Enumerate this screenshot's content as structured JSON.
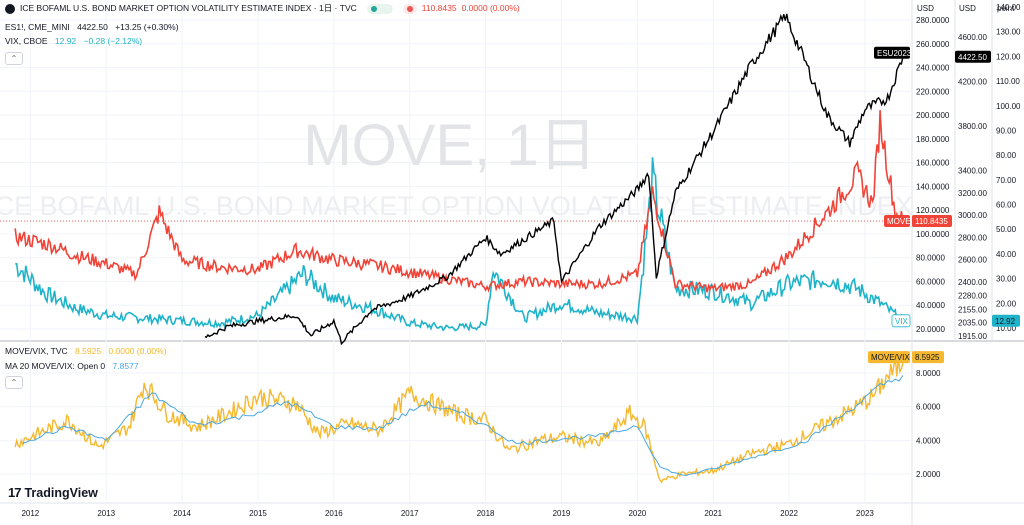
{
  "symbol_title": "ICE BOFAML U.S. BOND MARKET OPTION VOLATILITY ESTIMATE INDEX · 1日 · TVC",
  "header_price": "110.8435",
  "header_change": "0.0000 (0.00%)",
  "es_legend": {
    "symbol": "ES1!, CME_MINI",
    "price": "4422.50",
    "change": "+13.25 (+0.30%)"
  },
  "vix_legend": {
    "symbol": "VIX, CBOE",
    "price": "12.92",
    "change": "−0.28 (−2.12%)"
  },
  "ratio_legend": {
    "symbol": "MOVE/VIX, TVC",
    "price": "8.5925",
    "change": "0.0000 (0.00%)"
  },
  "ma_legend": {
    "name": "MA 20 MOVE/VIX: Open 0",
    "value": "7.8577"
  },
  "collapse_glyph": "⌃",
  "watermark": {
    "main": "MOVE, 1日",
    "sub": "ICE BOFAML U.S. BOND MARKET OPTION VOLATILITY ESTIMATE INDEX"
  },
  "axis_headers": {
    "move": "USD",
    "es": "USD",
    "vix": "point"
  },
  "branding": {
    "mark": "17",
    "name": "TradingView"
  },
  "colors": {
    "move": "#f04438",
    "es": "#000000",
    "vix": "#1fb3c9",
    "ratio": "#f5b82e",
    "ma": "#4aa8e0"
  },
  "chart_data": {
    "type": "line",
    "years": [
      "2012",
      "2013",
      "2014",
      "2015",
      "2016",
      "2017",
      "2018",
      "2019",
      "2020",
      "2021",
      "2022",
      "2023"
    ],
    "top_pane": {
      "move_axis_ticks": [
        "280.0000",
        "260.0000",
        "240.0000",
        "220.0000",
        "200.0000",
        "180.0000",
        "160.0000",
        "140.0000",
        "120.0000",
        "100.0000",
        "80.0000",
        "60.0000",
        "40.0000",
        "20.0000"
      ],
      "es_axis_ticks": [
        "4600.00",
        "4200.00",
        "3800.00",
        "3400.00",
        "3200.00",
        "3000.00",
        "2800.00",
        "2600.00",
        "2400.00",
        "2280.00",
        "2155.00",
        "2035.00",
        "1915.00"
      ],
      "vix_axis_ticks": [
        "140.00",
        "130.00",
        "120.00",
        "110.00",
        "100.00",
        "90.00",
        "80.00",
        "70.00",
        "60.00",
        "50.00",
        "40.00",
        "30.00",
        "20.00",
        "10.00"
      ],
      "labels": {
        "move": "MOVE",
        "move_value": "110.8435",
        "es": "ESU2023",
        "es_value": "4422.50",
        "vix": "VIX",
        "vix_value": "12.92"
      },
      "series": [
        {
          "name": "MOVE",
          "x": [
            2011.8,
            2012.3,
            2012.6,
            2013.0,
            2013.4,
            2013.7,
            2014.0,
            2014.5,
            2015.0,
            2015.5,
            2016.0,
            2016.5,
            2017.0,
            2017.5,
            2018.0,
            2018.5,
            2019.0,
            2019.5,
            2020.0,
            2020.2,
            2020.5,
            2021.0,
            2021.5,
            2022.0,
            2022.5,
            2022.9,
            2023.1,
            2023.2,
            2023.4,
            2023.5
          ],
          "y": [
            98,
            90,
            82,
            75,
            66,
            118,
            78,
            72,
            70,
            86,
            78,
            74,
            68,
            62,
            56,
            60,
            58,
            58,
            66,
            135,
            58,
            54,
            58,
            82,
            118,
            150,
            125,
            195,
            118,
            110.84
          ]
        },
        {
          "name": "ESU2023",
          "x": [
            2014.3,
            2014.6,
            2015.0,
            2015.5,
            2015.7,
            2016.0,
            2016.1,
            2016.5,
            2017.0,
            2017.5,
            2018.0,
            2018.2,
            2018.5,
            2018.9,
            2019.0,
            2019.5,
            2020.0,
            2020.15,
            2020.25,
            2020.5,
            2021.0,
            2021.5,
            2021.95,
            2022.2,
            2022.5,
            2022.8,
            2023.0,
            2023.3,
            2023.5
          ],
          "y": [
            1900,
            2000,
            2050,
            2100,
            1920,
            2050,
            1860,
            2150,
            2270,
            2450,
            2800,
            2650,
            2780,
            2950,
            2400,
            2900,
            3230,
            3380,
            2450,
            3200,
            3750,
            4350,
            4790,
            4400,
            3900,
            3650,
            3950,
            4050,
            4422.5
          ]
        },
        {
          "name": "VIX",
          "x": [
            2011.8,
            2012.2,
            2012.6,
            2013.0,
            2013.5,
            2014.0,
            2014.5,
            2015.0,
            2015.6,
            2016.0,
            2016.5,
            2017.0,
            2017.5,
            2018.0,
            2018.1,
            2018.5,
            2019.0,
            2019.5,
            2020.0,
            2020.2,
            2020.5,
            2021.0,
            2021.5,
            2022.0,
            2022.5,
            2022.9,
            2023.2,
            2023.5
          ],
          "y": [
            36,
            24,
            18,
            15,
            14,
            13,
            12,
            15,
            32,
            22,
            18,
            12,
            10,
            11,
            34,
            14,
            20,
            16,
            14,
            70,
            26,
            25,
            20,
            28,
            30,
            26,
            20,
            12.92
          ]
        }
      ]
    },
    "bottom_pane": {
      "ratio_axis_ticks": [
        "8.0000",
        "6.0000",
        "4.0000",
        "2.0000"
      ],
      "labels": {
        "ratio": "MOVE/VIX",
        "ratio_value": "8.5925"
      },
      "series": [
        {
          "name": "MOVE/VIX",
          "x": [
            2011.8,
            2012.1,
            2012.5,
            2012.9,
            2013.3,
            2013.5,
            2013.8,
            2014.2,
            2014.6,
            2015.0,
            2015.5,
            2015.8,
            2016.2,
            2016.6,
            2017.0,
            2017.3,
            2017.6,
            2018.0,
            2018.3,
            2018.7,
            2019.0,
            2019.5,
            2019.9,
            2020.1,
            2020.3,
            2020.6,
            2021.0,
            2021.5,
            2022.0,
            2022.5,
            2022.9,
            2023.1,
            2023.3,
            2023.5
          ],
          "y": [
            3.8,
            4.4,
            5.2,
            3.6,
            4.8,
            7.4,
            5.6,
            4.8,
            5.6,
            6.6,
            6.2,
            4.4,
            5.0,
            4.6,
            6.8,
            6.2,
            5.6,
            5.2,
            3.4,
            4.0,
            4.2,
            3.8,
            5.6,
            4.8,
            1.6,
            2.0,
            2.2,
            3.2,
            3.8,
            5.0,
            6.0,
            6.6,
            7.8,
            8.59
          ]
        },
        {
          "name": "MA 20 MOVE/VIX",
          "x": [
            2011.9,
            2012.5,
            2013.0,
            2013.6,
            2014.2,
            2014.8,
            2015.4,
            2016.0,
            2016.6,
            2017.2,
            2017.8,
            2018.4,
            2019.0,
            2019.6,
            2020.0,
            2020.3,
            2020.6,
            2021.0,
            2021.6,
            2022.2,
            2022.8,
            2023.2,
            2023.5
          ],
          "y": [
            3.9,
            4.8,
            4.0,
            6.8,
            4.9,
            5.4,
            6.3,
            4.8,
            4.7,
            6.2,
            5.4,
            3.8,
            4.1,
            4.3,
            4.9,
            2.4,
            1.9,
            2.3,
            3.1,
            3.9,
            5.8,
            7.2,
            7.86
          ]
        }
      ]
    }
  }
}
